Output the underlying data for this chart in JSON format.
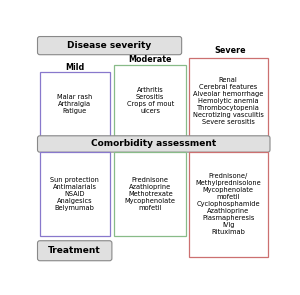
{
  "title_disease": "Disease severity",
  "title_comorbidity": "Comorbidity assessment",
  "title_treatment": "Treatment",
  "label_mild": "Mild",
  "label_moderate": "Moderate",
  "label_severe": "Severe",
  "mild_symptoms": "Malar rash\nArthralgia\nFatigue",
  "moderate_symptoms": "Arthritis\nSerositis\nCrops of mout\nulcers",
  "severe_symptoms": "Renal\nCerebral features\nAlveolar hemorrhage\nHemolytic anemia\nThrombocytopenia\nNecrotizing vasculitis\nSevere serositis",
  "mild_treatment": "Sun protection\nAntimalarials\nNSAID\nAnalgesics\nBelymumab",
  "moderate_treatment": "Prednisone\nAzathioprine\nMethotrexate\nMycophenolate\nmofetil",
  "severe_treatment": "Prednisone/\nMethylprednisolone\nMycophenolate\nmofetil\nCyclophosphamide\nAzathioprine\nPlasmapheresis\nIVIg\nRituximab",
  "color_mild": "#8878cc",
  "color_moderate": "#88bb88",
  "color_severe": "#cc7070",
  "color_header_face": "#e0e0e0",
  "color_header_edge": "#888888",
  "bg_color": "#ffffff",
  "fs_header": 6.5,
  "fs_label": 5.8,
  "fs_content": 4.8
}
